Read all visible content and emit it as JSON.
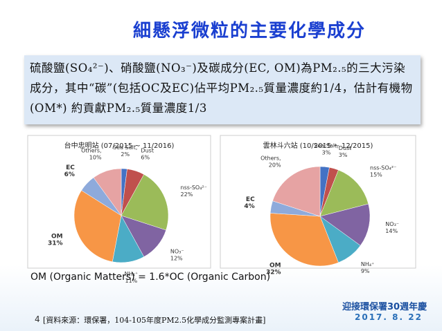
{
  "slide": {
    "title": "細懸浮微粒的主要化學成分",
    "summary": "硫酸鹽(SO₄²⁻)、硝酸鹽(NO₃⁻)及碳成分(EC, OM)為PM₂.₅的三大污染成分，其中“碳”(包括OC及EC)佔平均PM₂.₅質量濃度約1/4，估計有機物(OM*) 約貢獻PM₂.₅質量濃度1/3",
    "note": "OM (Organic Matters) = 1.6*OC (Organic Carbon)",
    "page_number": "4",
    "source": "[資料來源：環保署，104-105年度PM2.5化學成分監測專案計畫]",
    "logo_text": "迎接環保署30週年慶",
    "logo_date": "2017. 8. 22"
  },
  "chart_data": [
    {
      "type": "pie",
      "title": "台中忠明站 (07/2015 ~ 11/2016)",
      "categories": [
        "Sea Salt,",
        "Dust",
        "nss-SO₄²⁻",
        "NO₃⁻",
        "NH₄⁺",
        "OM",
        "EC",
        "Others,"
      ],
      "values": [
        2,
        6,
        22,
        12,
        11,
        31,
        6,
        10
      ],
      "value_labels": [
        "2%",
        "6%",
        "22%",
        "12%",
        "11%",
        "31%",
        "6%",
        "10%"
      ],
      "colors": [
        "#4472c4",
        "#c0504d",
        "#9bbb59",
        "#8064a2",
        "#4bacc6",
        "#f79646",
        "#8eaadb",
        "#e6a3a3"
      ]
    },
    {
      "type": "pie",
      "title": "雲林斗六站 (10/2015 ~ 12/2015)",
      "categories": [
        "Sea Salt,",
        "Dust",
        "nss-SO₄²⁻",
        "NO₃⁻",
        "NH₄⁺",
        "OM",
        "EC",
        "Others,"
      ],
      "values": [
        3,
        3,
        15,
        14,
        9,
        32,
        4,
        20
      ],
      "value_labels": [
        "3%",
        "3%",
        "15%",
        "14%",
        "9%",
        "32%",
        "4%",
        "20%"
      ],
      "colors": [
        "#4472c4",
        "#c0504d",
        "#9bbb59",
        "#8064a2",
        "#4bacc6",
        "#f79646",
        "#8eaadb",
        "#e6a3a3"
      ]
    }
  ]
}
